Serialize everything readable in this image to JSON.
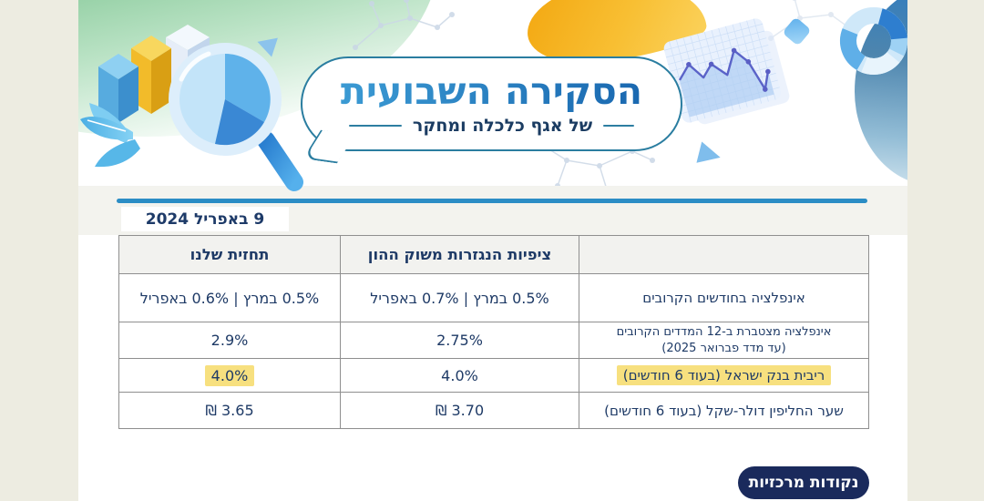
{
  "title_bubble": {
    "title": "הסקירה השבועית",
    "subtitle": "של אגף כלכלה ומחקר"
  },
  "date_label": "9 באפריל 2024",
  "table": {
    "headers": {
      "row_label": "",
      "market_expectations": "ציפיות הנגזרות משוק ההון",
      "our_forecast": "תחזית שלנו"
    },
    "rows": [
      {
        "label": "אינפלציה בחודשים הקרובים",
        "label_line2": "",
        "market": "0.5% במרץ | 0.7% באפריל",
        "ours": "0.5% במרץ | 0.6% באפריל",
        "highlight_label": false,
        "highlight_ours": false
      },
      {
        "label": "אינפלציה מצטברת ב-12 המדדים הקרובים",
        "label_line2": "(עד מדד פברואר 2025)",
        "market": "2.75%",
        "ours": "2.9%",
        "highlight_label": false,
        "highlight_ours": false
      },
      {
        "label": "ריבית בנק ישראל (בעוד 6 חודשים)",
        "label_line2": "",
        "market": "4.0%",
        "ours": "4.0%",
        "highlight_label": true,
        "highlight_ours": true
      },
      {
        "label": "שער החליפין דולר-שקל (בעוד 6 חודשים)",
        "label_line2": "",
        "market": "3.70 ₪",
        "ours": "3.65 ₪",
        "highlight_label": false,
        "highlight_ours": false
      }
    ]
  },
  "key_points_badge": "נקודות מרכזיות",
  "colors": {
    "page_background": "#edece1",
    "divider_blue": "#2b8dc5",
    "text_navy": "#1e3a66",
    "highlight_yellow": "#f7e07f",
    "badge_navy": "#1a2a5c",
    "title_blue_dark": "#1a68b0",
    "title_blue_light": "#3b9ad3",
    "bubble_border_teal": "#2a7da0"
  }
}
